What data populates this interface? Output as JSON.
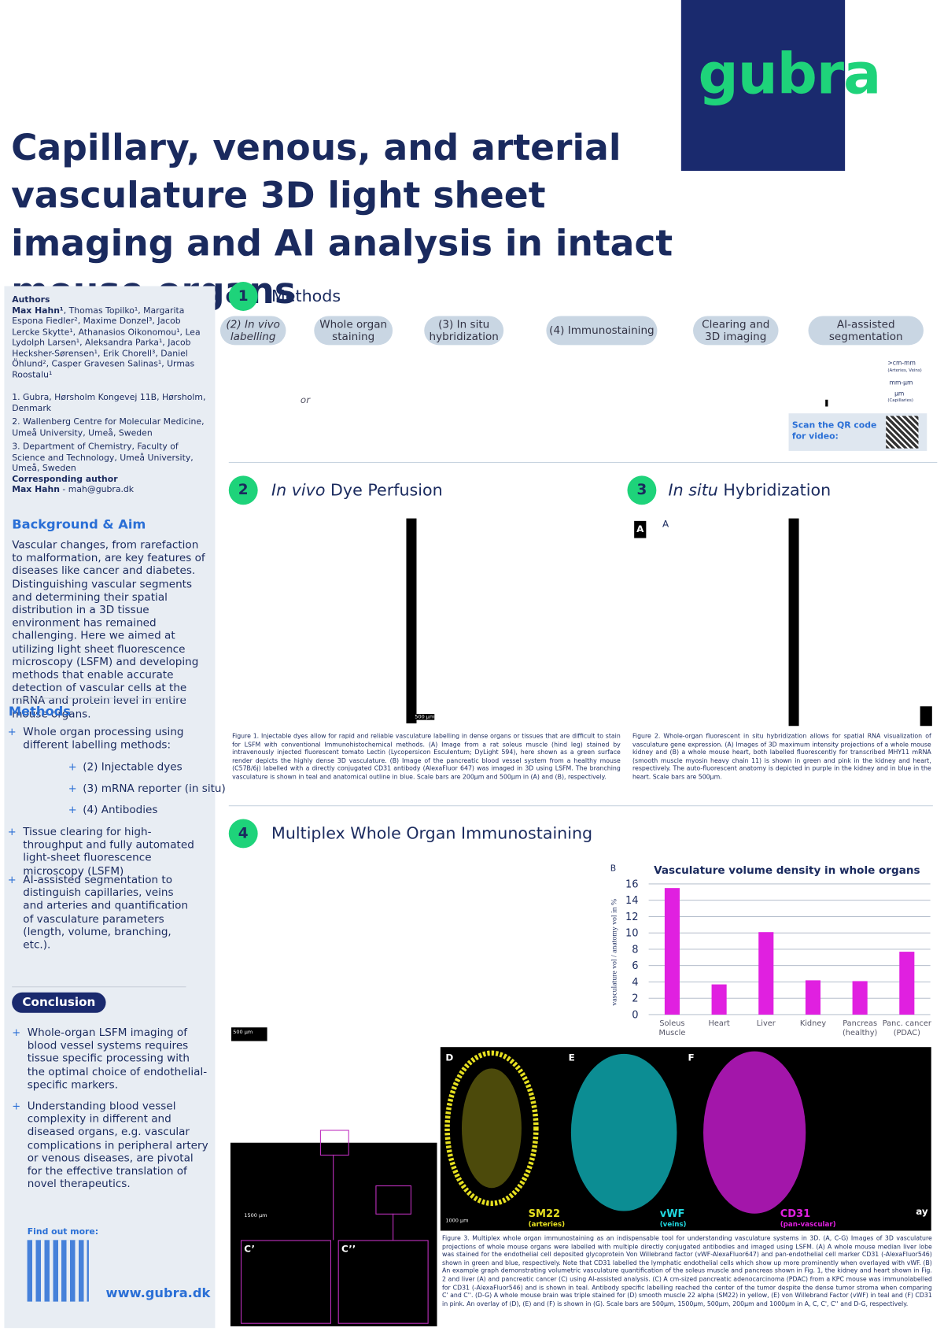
{
  "header": {
    "title": "Capillary, venous, and arterial vasculature 3D light sheet imaging and AI analysis in intact mouse organs",
    "logo": "gubra"
  },
  "sidebar": {
    "authors_heading": "Authors",
    "authors_lead": "Max Hahn¹",
    "authors": ", Thomas Topilko¹, Margarita Espona Fiedler², Maxime Donzel³, Jacob Lercke Skytte¹, Athanasios Oikonomou¹, Lea Lydolph Larsen¹, Aleksandra Parka¹, Jacob Hecksher-Sørensen¹, Erik Chorell³, Daniel Öhlund², Casper Gravesen Salinas¹, Urmas Roostalu¹",
    "affiliations": [
      "1. Gubra, Hørsholm Kongevej 11B, Hørsholm, Denmark",
      "2. Wallenberg Centre for Molecular Medicine, Umeå University, Umeå, Sweden",
      "3. Department of Chemistry, Faculty of Science and Technology, Umeå University, Umeå, Sweden"
    ],
    "corresponding_heading": "Corresponding author",
    "corresponding_name": "Max Hahn",
    "corresponding_mail": " - mah@gubra.dk",
    "background_heading": "Background & Aim",
    "background_text": "Vascular changes, from rarefaction to malformation, are key features of diseases like cancer and diabetes. Distinguishing vascular segments and determining their spatial distribution in a 3D tissue environment has remained challenging. Here we aimed at utilizing light sheet fluorescence microscopy (LSFM) and developing methods that enable accurate detection of vascular cells at the mRNA and protein level in entire mouse organs.",
    "methods_heading": "Methods",
    "methods_items": [
      "Whole organ processing using different labelling methods:",
      "Tissue clearing for high-throughput and fully automated light-sheet fluorescence microscopy (LSFM)",
      "AI-assisted segmentation to distinguish capillaries, veins and arteries and quantification of vasculature parameters (length, volume, branching, etc.)."
    ],
    "methods_subitems": [
      "(2) Injectable dyes",
      "(3) mRNA reporter (in situ)",
      "(4) Antibodies"
    ],
    "conclusion_heading": "Conclusion",
    "conclusion_items": [
      "Whole-organ LSFM imaging of blood vessel systems requires tissue specific processing with the optimal choice of endothelial-specific markers.",
      "Understanding blood vessel complexity in different and diseased organs, e.g. vascular complications in peripheral artery or venous diseases, are pivotal for the effective translation of novel therapeutics."
    ],
    "find_out": "Find out more:",
    "website": "www.gubra.dk"
  },
  "section1": {
    "number": "1",
    "title": "Methods",
    "steps": [
      "(2) In vivo labelling",
      "Whole organ staining",
      "(3) In situ hybridization",
      "(4) Immunostaining",
      "Clearing and 3D imaging",
      "AI-assisted segmentation"
    ],
    "or": "or",
    "scale_labels": [
      ">cm-mm",
      "(Arteries, Veins)",
      "mm-µm",
      "µm",
      "(Capillaries)"
    ],
    "qr_text": "Scan the QR code for video:"
  },
  "section2": {
    "number": "2",
    "title_em": "In vivo",
    "title_rest": " Dye Perfusion",
    "scale_bar": "500 µm",
    "caption": "Figure 1. Injectable dyes allow for rapid and reliable vasculature labelling in dense organs or tissues that are difficult to stain for LSFM with conventional Immunohistochemical methods. (A) Image from a rat soleus muscle (hind leg) stained by intravenously injected fluorescent tomato Lectin (Lycopersicon Esculentum; DyLight 594), here shown as a green surface render depicts the highly dense 3D vasculature. (B) Image of the pancreatic blood vessel system from a healthy mouse (C57B/6j) labelled with a directly conjugated CD31 antibody (AlexaFluor 647) was imaged in 3D using LSFM. The branching vasculature is shown in teal and anatomical outline in blue. Scale bars are 200µm and 500µm in (A) and (B), respectively."
  },
  "section3": {
    "number": "3",
    "title_em": "In situ",
    "title_rest": " Hybridization",
    "panel_a": "A",
    "panel_a2": "A",
    "caption": "Figure 2. Whole-organ fluorescent in situ hybridization allows for spatial RNA visualization of vasculature gene expression. (A) Images of 3D maximum intensity projections of a whole mouse kidney and (B) a whole mouse heart, both labelled fluorescently for transcribed MHY11 mRNA (smooth muscle myosin heavy chain 11) is shown in green and pink in the kidney and heart, respectively. The auto-fluorescent anatomy is depicted in purple in the kidney and in blue in the heart. Scale bars are 500µm."
  },
  "section4": {
    "number": "4",
    "title": "Multiplex Whole Organ Immunostaining",
    "scale_a": "500 µm",
    "scale_c": "1500 µm",
    "c1": "C’",
    "c2": "C’’",
    "panel_d": "D",
    "panel_e": "E",
    "panel_f": "F",
    "scale_dg": "1000 µm",
    "sm22": "SM22",
    "sm22_sub": "(arteries)",
    "vwf": "vWF",
    "vwf_sub": "(veins)",
    "cd31": "CD31",
    "cd31_sub": "(pan-vascular)",
    "g_fragment": "ay",
    "caption": "Figure 3. Multiplex whole organ immunostaining as an indispensable tool for understanding vasculature systems in 3D. (A, C-G) Images of 3D vasculature projections of whole mouse organs were labelled with multiple directly conjugated antibodies and imaged using LSFM. (A) A whole mouse median liver lobe was stained for the endothelial cell deposited glycoprotein Von Willebrand factor (vWF-AlexaFluor647) and pan-endothelial cell marker CD31 (-AlexaFluor546) shown in green and blue, respectively. Note that CD31 labelled the lymphatic endothelial cells which show up more prominently when overlayed with vWF. (B) An example graph demonstrating volumetric vasculature quantification of the soleus muscle and pancreas shown in Fig. 1, the kidney and heart shown in Fig. 2 and liver (A) and pancreatic cancer (C) using AI-assisted analysis. (C) A cm-sized pancreatic adenocarcinoma (PDAC) from a KPC mouse was immunolabelled for CD31 (-AlexaFluor546) and is shown in teal. Antibody specific labelling reached the center of the tumor despite the dense tumor stroma when comparing C' and C''. (D-G) A whole mouse brain was triple stained for (D) smooth muscle 22 alpha (SM22) in yellow, (E) von Willebrand Factor (vWF) in teal and (F) CD31 in pink. An overlay of (D), (E) and (F) is shown in (G). Scale bars are 500µm, 1500µm, 500µm, 200µm and 1000µm in A, C, C', C'' and D-G, respectively."
  },
  "chart_data": {
    "type": "bar",
    "panel": "B",
    "title": "Vasculature volume density in whole organs",
    "ylabel": "vasculature vol / anatomy vol in %",
    "categories": [
      "Soleus Muscle",
      "Heart",
      "Liver",
      "Kidney",
      "Pancreas (healthy)",
      "Panc. cancer (PDAC)"
    ],
    "values": [
      15.5,
      3.7,
      10.1,
      4.2,
      4.1,
      7.7
    ],
    "color": "#e020e0",
    "ylim": [
      0,
      16
    ],
    "yticks": [
      0,
      2,
      4,
      6,
      8,
      10,
      12,
      14,
      16
    ],
    "grid": true
  }
}
